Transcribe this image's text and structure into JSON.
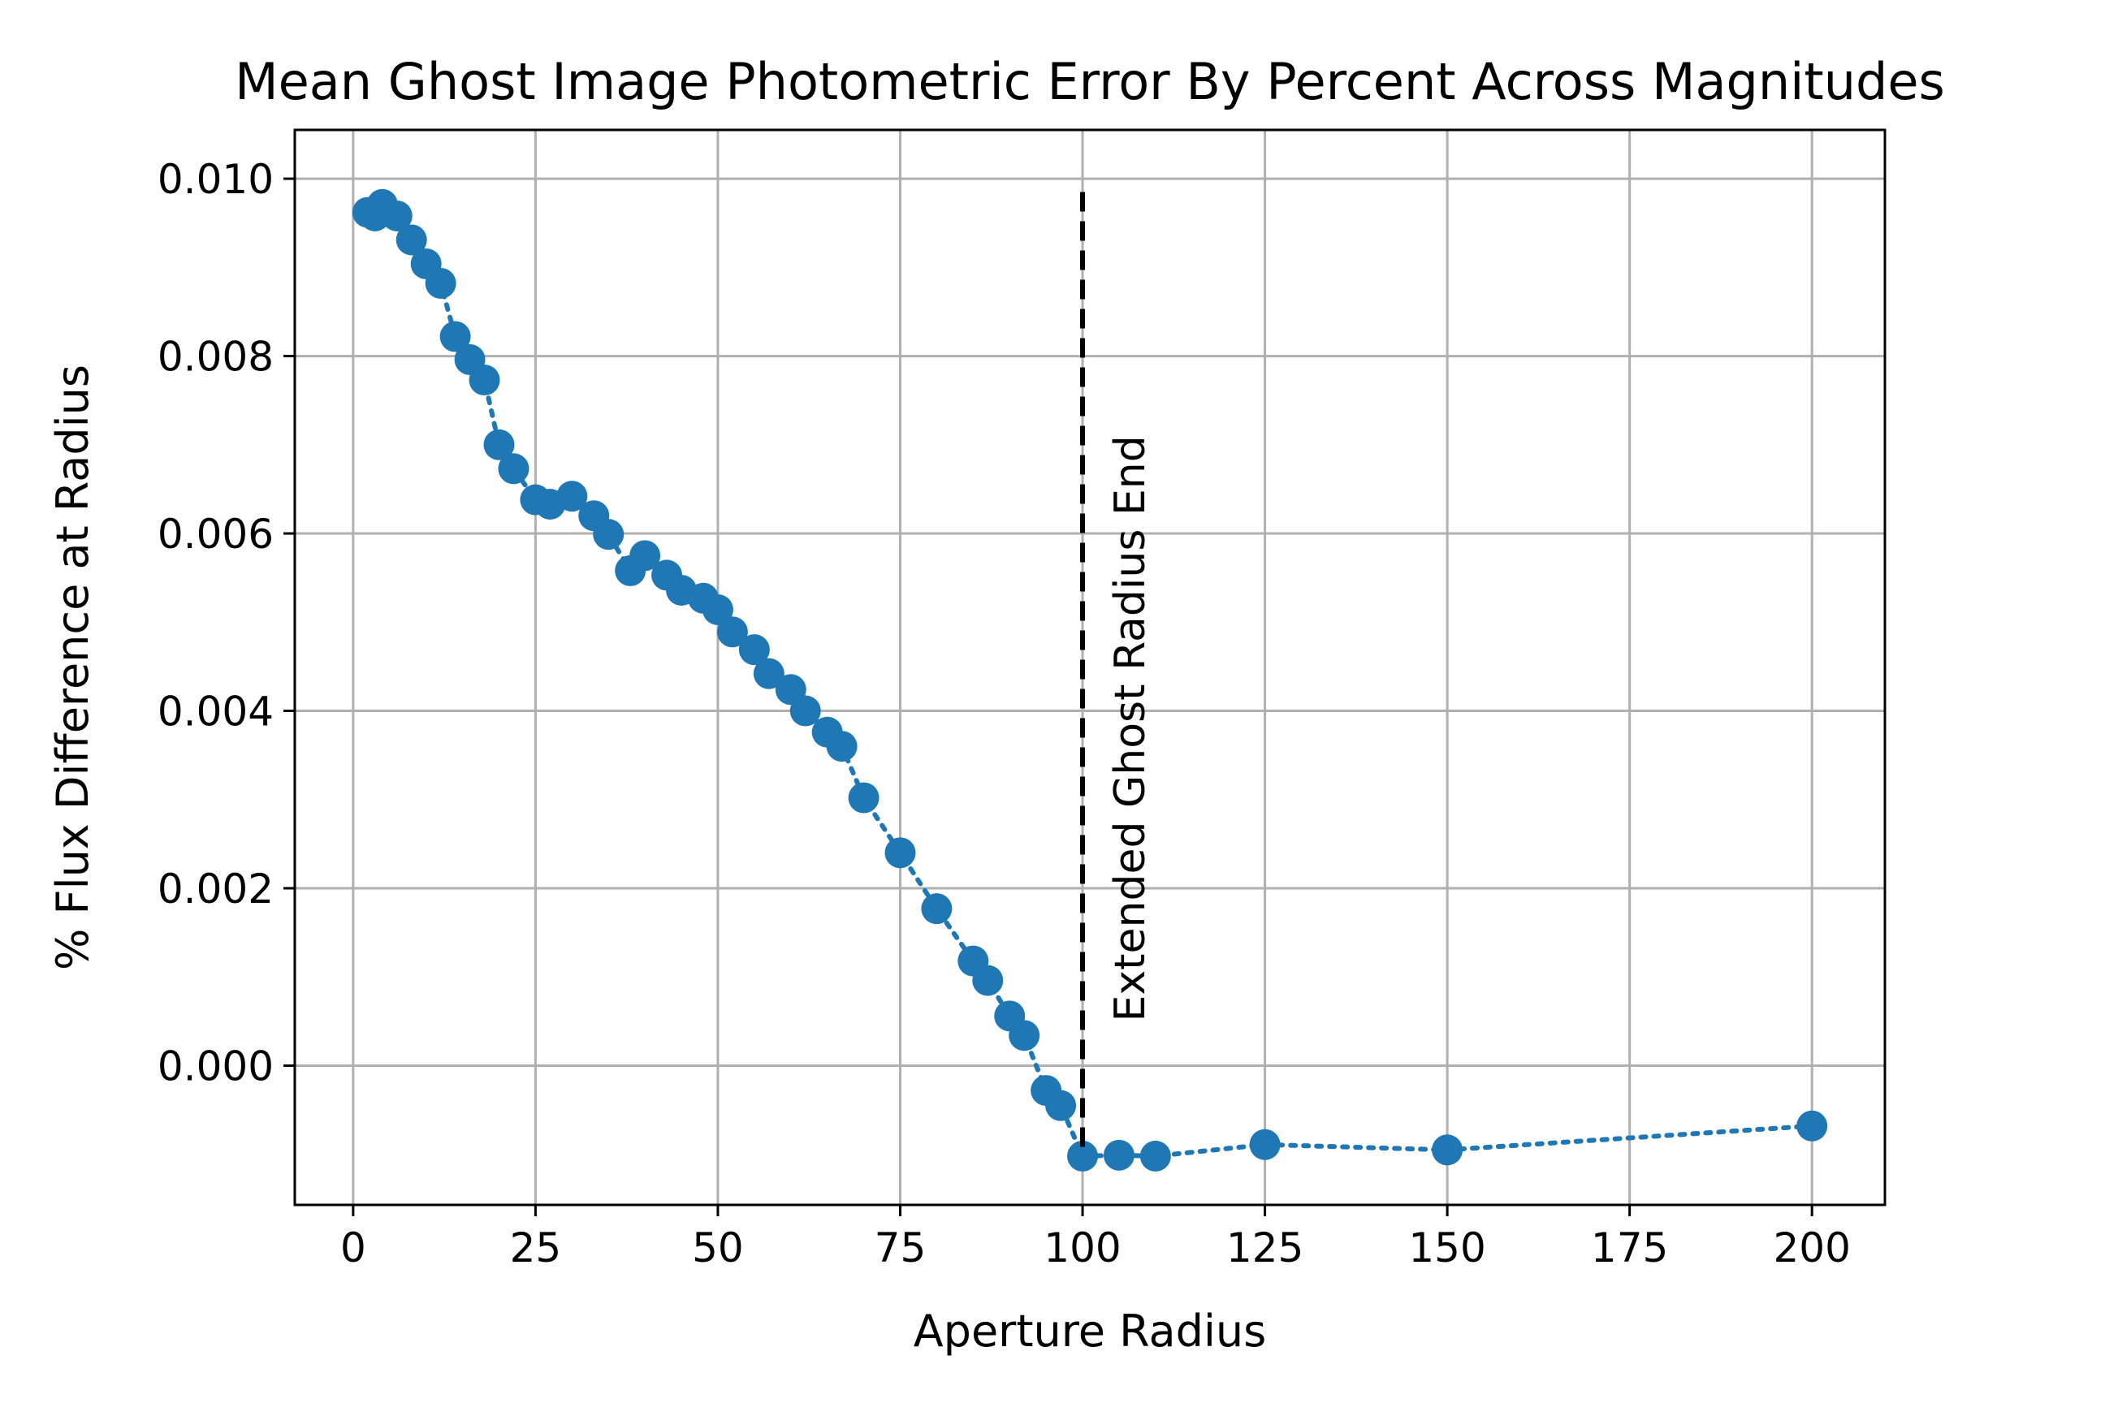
{
  "chart_data": {
    "type": "scatter",
    "title": "Mean Ghost Image Photometric Error By Percent Across Magnitudes",
    "xlabel": "Aperture Radius",
    "ylabel": "% Flux Difference at Radius",
    "xlim": [
      -8,
      210
    ],
    "ylim": [
      -0.00157,
      0.01055
    ],
    "xticks": [
      0,
      25,
      50,
      75,
      100,
      125,
      150,
      175,
      200
    ],
    "xtick_labels": [
      "0",
      "25",
      "50",
      "75",
      "100",
      "125",
      "150",
      "175",
      "200"
    ],
    "yticks": [
      0.0,
      0.002,
      0.004,
      0.006,
      0.008,
      0.01
    ],
    "ytick_labels": [
      "0.000",
      "0.002",
      "0.004",
      "0.006",
      "0.008",
      "0.010"
    ],
    "grid": true,
    "series": [
      {
        "color": "#1f77b4",
        "line_style": "dotted",
        "marker": "circle",
        "x": [
          2,
          3,
          4,
          6,
          8,
          10,
          12,
          14,
          16,
          18,
          20,
          22,
          25,
          27,
          30,
          33,
          35,
          38,
          40,
          43,
          45,
          48,
          50,
          52,
          55,
          57,
          60,
          62,
          65,
          67,
          70,
          75,
          80,
          85,
          87,
          90,
          92,
          95,
          97,
          100,
          105,
          110,
          125,
          150,
          200
        ],
        "y": [
          0.00962,
          0.00958,
          0.00971,
          0.00958,
          0.00931,
          0.00904,
          0.00882,
          0.00822,
          0.00796,
          0.00773,
          0.007,
          0.00673,
          0.00638,
          0.00633,
          0.00642,
          0.0062,
          0.00599,
          0.00558,
          0.00575,
          0.00553,
          0.00536,
          0.00527,
          0.00514,
          0.00489,
          0.00469,
          0.00442,
          0.00424,
          0.004,
          0.00376,
          0.0036,
          0.00302,
          0.0024,
          0.00177,
          0.00118,
          0.00096,
          0.00056,
          0.00034,
          -0.00028,
          -0.00045,
          -0.00102,
          -0.00101,
          -0.00102,
          -0.00089,
          -0.00095,
          -0.00068
        ]
      }
    ],
    "vline": {
      "x": 100,
      "y_range": [
        -0.00102,
        0.00985
      ],
      "style": "dashed",
      "color": "#000000",
      "label": "Extended Ghost Radius End"
    }
  }
}
